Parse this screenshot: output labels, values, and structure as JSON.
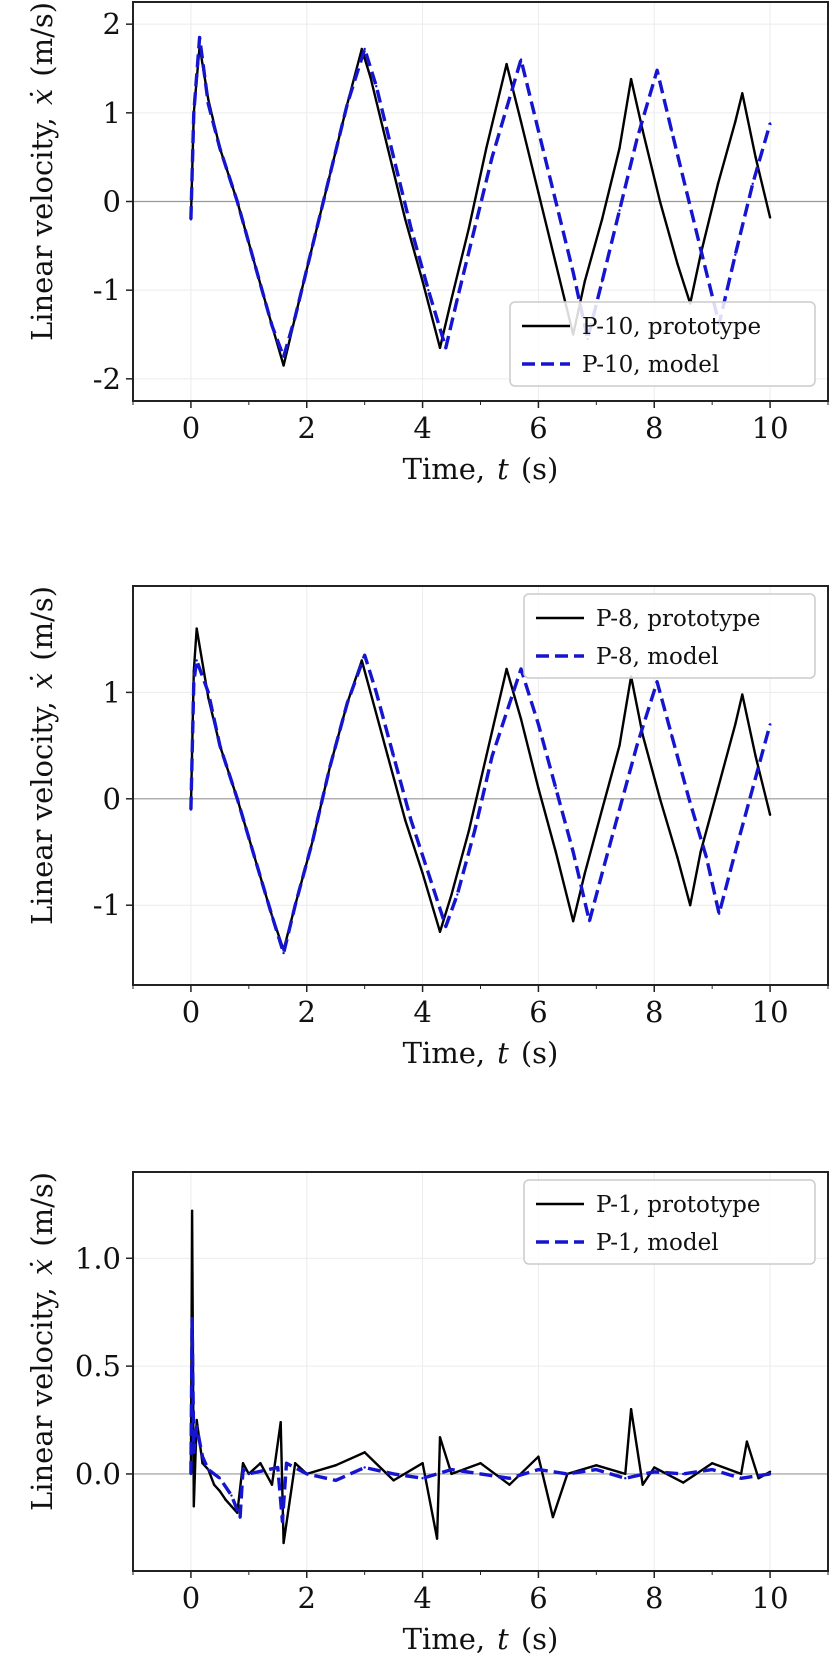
{
  "chart_data": [
    {
      "type": "line",
      "xlabel_text": "Time,",
      "xlabel_var": "t",
      "xlabel_unit": "(s)",
      "ylabel_text": "Linear velocity,",
      "ylabel_var": "ẋ",
      "ylabel_unit": "(m/s)",
      "xlim": [
        -1,
        11
      ],
      "ylim": [
        -2.25,
        2.25
      ],
      "xticks": [
        0,
        2,
        4,
        6,
        8,
        10
      ],
      "xtick_labels": [
        "0",
        "2",
        "4",
        "6",
        "8",
        "10"
      ],
      "yticks": [
        -2,
        -1,
        0,
        1,
        2
      ],
      "ytick_labels": [
        "-2",
        "-1",
        "0",
        "1",
        "2"
      ],
      "grid": true,
      "legend_position": "bottom-right",
      "series": [
        {
          "name": "P-10, prototype",
          "color": "#000000",
          "style": "solid",
          "x": [
            0,
            0.05,
            0.15,
            0.3,
            0.5,
            0.8,
            1.1,
            1.4,
            1.6,
            1.8,
            2.1,
            2.4,
            2.7,
            2.95,
            3.1,
            3.4,
            3.7,
            4.0,
            4.3,
            4.5,
            4.8,
            5.1,
            5.45,
            5.7,
            6.0,
            6.3,
            6.6,
            6.8,
            7.1,
            7.4,
            7.6,
            7.8,
            8.1,
            8.4,
            8.62,
            8.8,
            9.1,
            9.4,
            9.52,
            9.75,
            10.0
          ],
          "y": [
            -0.2,
            1.0,
            1.75,
            1.15,
            0.6,
            0.0,
            -0.7,
            -1.4,
            -1.85,
            -1.3,
            -0.5,
            0.3,
            1.1,
            1.72,
            1.4,
            0.6,
            -0.2,
            -0.9,
            -1.65,
            -1.1,
            -0.3,
            0.6,
            1.55,
            0.9,
            0.1,
            -0.7,
            -1.5,
            -0.9,
            -0.2,
            0.6,
            1.38,
            0.8,
            0.0,
            -0.7,
            -1.15,
            -0.6,
            0.2,
            0.9,
            1.22,
            0.5,
            -0.18
          ]
        },
        {
          "name": "P-10, model",
          "color": "#1515d0",
          "style": "dashed",
          "x": [
            0,
            0.05,
            0.15,
            0.3,
            0.5,
            0.8,
            1.1,
            1.4,
            1.6,
            1.8,
            2.1,
            2.4,
            2.7,
            3.0,
            3.2,
            3.5,
            3.8,
            4.1,
            4.4,
            4.6,
            4.9,
            5.2,
            5.7,
            6.0,
            6.3,
            6.6,
            6.85,
            7.1,
            7.4,
            7.7,
            8.05,
            8.3,
            8.6,
            8.9,
            9.12,
            9.4,
            9.7,
            10.0
          ],
          "y": [
            -0.2,
            1.0,
            1.85,
            1.1,
            0.6,
            0.0,
            -0.7,
            -1.4,
            -1.75,
            -1.3,
            -0.5,
            0.3,
            1.1,
            1.72,
            1.3,
            0.5,
            -0.3,
            -1.0,
            -1.65,
            -1.1,
            -0.3,
            0.5,
            1.6,
            0.8,
            0.0,
            -0.8,
            -1.55,
            -0.9,
            -0.1,
            0.7,
            1.48,
            0.8,
            0.0,
            -0.8,
            -1.38,
            -0.6,
            0.2,
            0.88
          ]
        }
      ]
    },
    {
      "type": "line",
      "xlabel_text": "Time,",
      "xlabel_var": "t",
      "xlabel_unit": "(s)",
      "ylabel_text": "Linear velocity,",
      "ylabel_var": "ẋ",
      "ylabel_unit": "(m/s)",
      "xlim": [
        -1,
        11
      ],
      "ylim": [
        -1.75,
        2.0
      ],
      "xticks": [
        0,
        2,
        4,
        6,
        8,
        10
      ],
      "xtick_labels": [
        "0",
        "2",
        "4",
        "6",
        "8",
        "10"
      ],
      "yticks": [
        -1,
        0,
        1
      ],
      "ytick_labels": [
        "-1",
        "0",
        "1"
      ],
      "grid": true,
      "legend_position": "top-right",
      "series": [
        {
          "name": "P-8, prototype",
          "color": "#000000",
          "style": "solid",
          "x": [
            0,
            0.05,
            0.1,
            0.3,
            0.5,
            0.8,
            1.1,
            1.4,
            1.6,
            1.8,
            2.1,
            2.4,
            2.7,
            2.95,
            3.1,
            3.4,
            3.7,
            4.0,
            4.3,
            4.5,
            4.8,
            5.1,
            5.45,
            5.7,
            6.0,
            6.3,
            6.6,
            6.8,
            7.1,
            7.4,
            7.6,
            7.8,
            8.1,
            8.4,
            8.62,
            8.8,
            9.1,
            9.4,
            9.52,
            9.75,
            10.0
          ],
          "y": [
            -0.1,
            1.2,
            1.6,
            0.95,
            0.5,
            0.0,
            -0.55,
            -1.1,
            -1.42,
            -1.0,
            -0.4,
            0.3,
            0.9,
            1.3,
            1.0,
            0.4,
            -0.2,
            -0.7,
            -1.25,
            -0.9,
            -0.3,
            0.4,
            1.22,
            0.75,
            0.1,
            -0.5,
            -1.15,
            -0.7,
            -0.1,
            0.5,
            1.15,
            0.6,
            0.0,
            -0.55,
            -1.0,
            -0.5,
            0.1,
            0.7,
            0.98,
            0.4,
            -0.15
          ]
        },
        {
          "name": "P-8, model",
          "color": "#1515d0",
          "style": "dashed",
          "x": [
            0,
            0.05,
            0.1,
            0.3,
            0.5,
            0.8,
            1.1,
            1.4,
            1.6,
            1.8,
            2.1,
            2.4,
            2.7,
            3.0,
            3.2,
            3.5,
            3.8,
            4.1,
            4.4,
            4.6,
            4.9,
            5.2,
            5.7,
            6.0,
            6.3,
            6.6,
            6.88,
            7.1,
            7.4,
            7.7,
            8.05,
            8.3,
            8.6,
            8.9,
            9.12,
            9.4,
            9.7,
            10.0
          ],
          "y": [
            -0.1,
            1.1,
            1.3,
            1.0,
            0.5,
            0.0,
            -0.55,
            -1.1,
            -1.45,
            -1.0,
            -0.4,
            0.3,
            0.9,
            1.35,
            1.0,
            0.4,
            -0.2,
            -0.7,
            -1.2,
            -0.9,
            -0.3,
            0.4,
            1.22,
            0.7,
            0.1,
            -0.5,
            -1.15,
            -0.7,
            -0.1,
            0.5,
            1.1,
            0.6,
            0.0,
            -0.55,
            -1.08,
            -0.5,
            0.1,
            0.7
          ]
        }
      ]
    },
    {
      "type": "line",
      "xlabel_text": "Time,",
      "xlabel_var": "t",
      "xlabel_unit": "(s)",
      "ylabel_text": "Linear velocity,",
      "ylabel_var": "ẋ",
      "ylabel_unit": "(m/s)",
      "xlim": [
        -1,
        11
      ],
      "ylim": [
        -0.45,
        1.4
      ],
      "xticks": [
        0,
        2,
        4,
        6,
        8,
        10
      ],
      "xtick_labels": [
        "0",
        "2",
        "4",
        "6",
        "8",
        "10"
      ],
      "yticks": [
        0.0,
        0.5,
        1.0
      ],
      "ytick_labels": [
        "0.0",
        "0.5",
        "1.0"
      ],
      "grid": true,
      "legend_position": "top-right",
      "series": [
        {
          "name": "P-1, prototype",
          "color": "#000000",
          "style": "solid",
          "x": [
            0,
            0.02,
            0.05,
            0.1,
            0.2,
            0.3,
            0.4,
            0.5,
            0.6,
            0.7,
            0.8,
            0.9,
            1.0,
            1.2,
            1.4,
            1.55,
            1.6,
            1.8,
            2.0,
            2.5,
            3.0,
            3.5,
            4.0,
            4.25,
            4.3,
            4.5,
            5.0,
            5.5,
            6.0,
            6.25,
            6.5,
            7.0,
            7.5,
            7.6,
            7.8,
            8.0,
            8.5,
            9.0,
            9.5,
            9.6,
            9.8,
            10.0
          ],
          "y": [
            0.0,
            1.22,
            -0.15,
            0.25,
            0.05,
            0.02,
            -0.05,
            -0.08,
            -0.12,
            -0.15,
            -0.18,
            0.05,
            0.0,
            0.05,
            -0.05,
            0.24,
            -0.32,
            0.05,
            0.0,
            0.04,
            0.1,
            -0.03,
            0.05,
            -0.3,
            0.17,
            0.0,
            0.05,
            -0.05,
            0.08,
            -0.2,
            0.0,
            0.04,
            0.0,
            0.3,
            -0.05,
            0.03,
            -0.04,
            0.05,
            0.0,
            0.15,
            -0.02,
            0.01
          ]
        },
        {
          "name": "P-1, model",
          "color": "#1515d0",
          "style": "dashed",
          "x": [
            0,
            0.02,
            0.05,
            0.1,
            0.2,
            0.3,
            0.5,
            0.7,
            0.85,
            0.9,
            1.0,
            1.5,
            1.58,
            1.65,
            2.0,
            2.5,
            3.0,
            3.5,
            4.0,
            4.5,
            5.0,
            5.5,
            6.0,
            6.5,
            7.0,
            7.5,
            8.0,
            8.5,
            9.0,
            9.5,
            10.0
          ],
          "y": [
            0.0,
            0.72,
            0.1,
            0.22,
            0.08,
            0.02,
            -0.02,
            -0.1,
            -0.2,
            0.02,
            0.0,
            0.03,
            -0.22,
            0.05,
            0.0,
            -0.03,
            0.03,
            0.0,
            -0.02,
            0.02,
            0.0,
            -0.02,
            0.02,
            0.0,
            0.02,
            -0.02,
            0.01,
            0.0,
            0.02,
            -0.02,
            0.0
          ]
        }
      ]
    }
  ]
}
